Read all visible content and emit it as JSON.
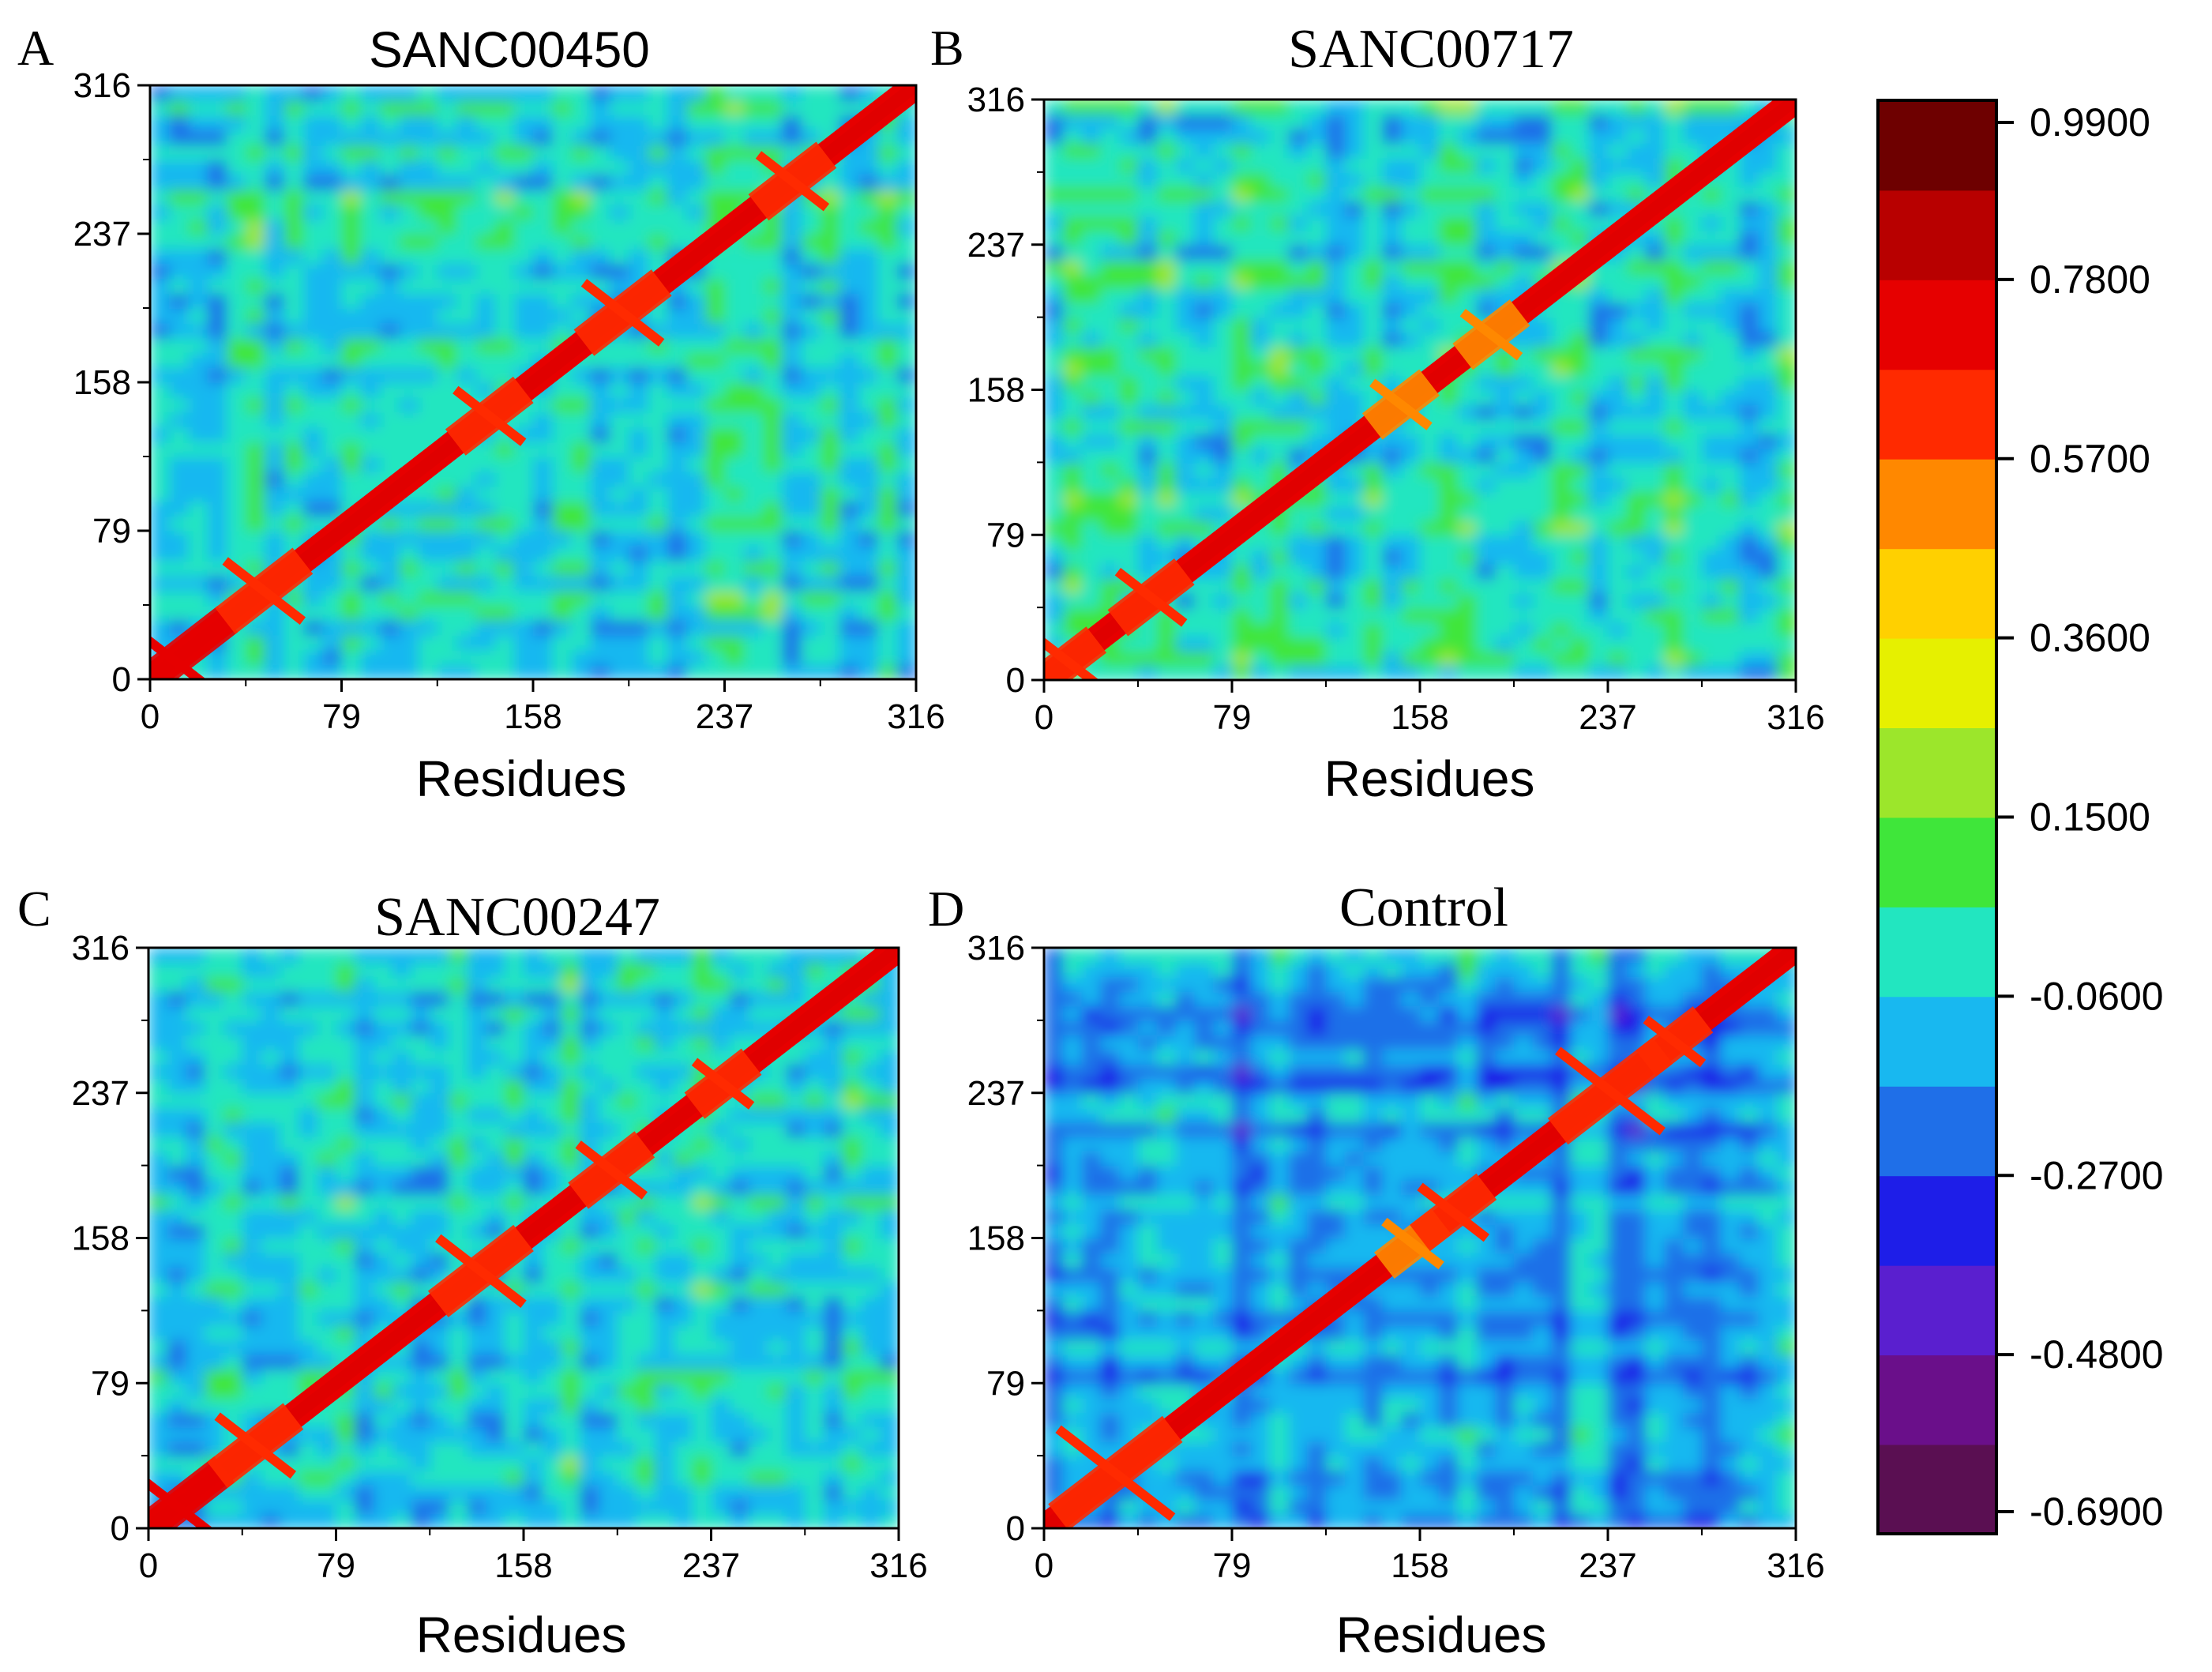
{
  "chart_data": [
    {
      "type": "heatmap",
      "panel_letter": "A",
      "title": "SANC00450",
      "xlabel": "Residues",
      "ylabel": "",
      "xlim": [
        0,
        316
      ],
      "ylim": [
        0,
        316
      ],
      "x_ticks": [
        "0",
        "79",
        "158",
        "237",
        "316"
      ],
      "y_ticks": [
        "0",
        "79",
        "158",
        "237",
        "316"
      ],
      "diagonal_value": 0.99,
      "features": [
        {
          "x": 10,
          "y": 10,
          "w": 22,
          "value": 0.7
        },
        {
          "x": 47,
          "y": 47,
          "w": 16,
          "value": 0.62
        },
        {
          "x": 140,
          "y": 140,
          "w": 14,
          "value": 0.6
        },
        {
          "x": 195,
          "y": 195,
          "w": 16,
          "value": 0.62
        },
        {
          "x": 265,
          "y": 265,
          "w": 14,
          "value": 0.6
        }
      ]
    },
    {
      "type": "heatmap",
      "panel_letter": "B",
      "title": "SANC00717",
      "xlabel": "Residues",
      "ylabel": "",
      "xlim": [
        0,
        316
      ],
      "ylim": [
        0,
        316
      ],
      "x_ticks": [
        "0",
        "79",
        "158",
        "237",
        "316"
      ],
      "y_ticks": [
        "0",
        "79",
        "158",
        "237",
        "316"
      ],
      "diagonal_value": 0.99,
      "features": [
        {
          "x": 10,
          "y": 10,
          "w": 12,
          "value": 0.6
        },
        {
          "x": 45,
          "y": 45,
          "w": 14,
          "value": 0.62
        },
        {
          "x": 150,
          "y": 150,
          "w": 12,
          "value": 0.55
        },
        {
          "x": 188,
          "y": 188,
          "w": 12,
          "value": 0.55
        }
      ]
    },
    {
      "type": "heatmap",
      "panel_letter": "C",
      "title": "SANC00247",
      "xlabel": "Residues",
      "ylabel": "",
      "xlim": [
        0,
        316
      ],
      "ylim": [
        0,
        316
      ],
      "x_ticks": [
        "0",
        "79",
        "158",
        "237",
        "316"
      ],
      "y_ticks": [
        "0",
        "79",
        "158",
        "237",
        "316"
      ],
      "diagonal_value": 0.99,
      "features": [
        {
          "x": 12,
          "y": 12,
          "w": 20,
          "value": 0.72
        },
        {
          "x": 45,
          "y": 45,
          "w": 16,
          "value": 0.65
        },
        {
          "x": 140,
          "y": 140,
          "w": 18,
          "value": 0.62
        },
        {
          "x": 195,
          "y": 195,
          "w": 14,
          "value": 0.6
        },
        {
          "x": 242,
          "y": 242,
          "w": 12,
          "value": 0.65
        }
      ]
    },
    {
      "type": "heatmap",
      "panel_letter": "D",
      "title": "Control",
      "xlabel": "Residues",
      "ylabel": "",
      "xlim": [
        0,
        316
      ],
      "ylim": [
        0,
        316
      ],
      "x_ticks": [
        "0",
        "79",
        "158",
        "237",
        "316"
      ],
      "y_ticks": [
        "0",
        "79",
        "158",
        "237",
        "316"
      ],
      "diagonal_value": 0.99,
      "features": [
        {
          "x": 30,
          "y": 30,
          "w": 24,
          "value": 0.6
        },
        {
          "x": 155,
          "y": 155,
          "w": 12,
          "value": 0.55
        },
        {
          "x": 172,
          "y": 172,
          "w": 14,
          "value": 0.58
        },
        {
          "x": 238,
          "y": 238,
          "w": 22,
          "value": 0.6
        },
        {
          "x": 265,
          "y": 265,
          "w": 12,
          "value": 0.58
        }
      ]
    }
  ],
  "colorbar": {
    "min": -0.69,
    "max": 0.99,
    "tick_labels": [
      "0.9900",
      "0.7800",
      "0.5700",
      "0.3600",
      "0.1500",
      "-0.0600",
      "-0.2700",
      "-0.4800",
      "-0.6900"
    ],
    "tick_values": [
      0.99,
      0.78,
      0.57,
      0.36,
      0.15,
      -0.06,
      -0.27,
      -0.48,
      -0.69
    ],
    "colors": [
      "#5a0f52",
      "#6a0f8a",
      "#5a1fcf",
      "#1e1ee8",
      "#1f6fe8",
      "#18b8f0",
      "#22e6c0",
      "#3fe63a",
      "#9ce62b",
      "#e6f000",
      "#ffd000",
      "#ff8800",
      "#ff2a00",
      "#e60000",
      "#b80000",
      "#6e0000"
    ]
  }
}
